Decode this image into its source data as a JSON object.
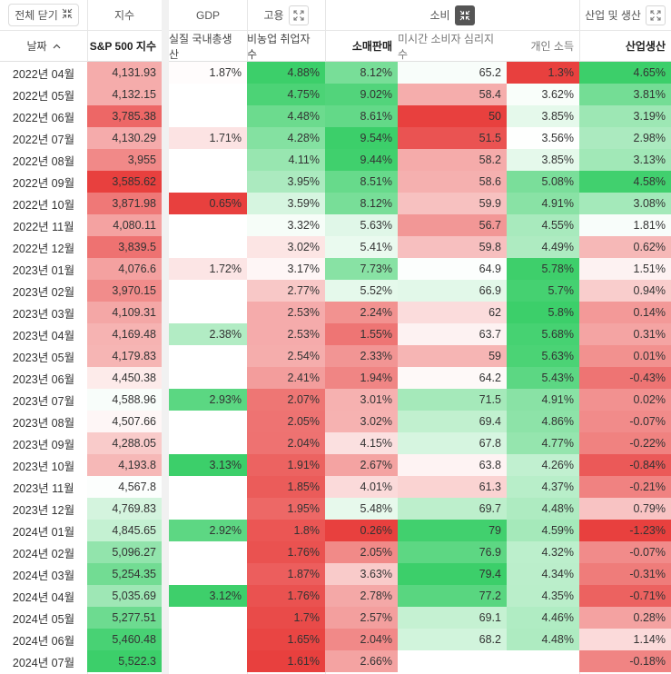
{
  "groups": {
    "collapse_all": "전체 닫기",
    "index": "지수",
    "gdp": "GDP",
    "employment": "고용",
    "consumption": "소비",
    "industry": "산업 및 생산"
  },
  "columns": {
    "date": "날짜",
    "sp500": "S&P 500 지수",
    "gdp": "실질 국내총생산",
    "nfp": "비농업 취업자 수",
    "retail": "소매판매",
    "sentiment": "미시간 소비자 심리지수",
    "income": "개인 소득",
    "industrial": "산업생산"
  },
  "icons": {
    "collapse": "collapse-arrows-icon",
    "expand": "expand-arrows-icon",
    "sort": "sort-ascending-icon"
  },
  "colors": {
    "green_strong": "#3ccf6a",
    "red_strong": "#e8403e",
    "neutral": "#ffffff"
  },
  "rows": [
    {
      "date": "2022년 04월",
      "sp500": "4,131.93",
      "gdp": "1.87%",
      "nfp": "4.88%",
      "retail": "8.12%",
      "sentiment": "65.2",
      "income": "1.3%",
      "industrial": "4.65%"
    },
    {
      "date": "2022년 05월",
      "sp500": "4,132.15",
      "gdp": "",
      "nfp": "4.75%",
      "retail": "9.02%",
      "sentiment": "58.4",
      "income": "3.62%",
      "industrial": "3.81%"
    },
    {
      "date": "2022년 06월",
      "sp500": "3,785.38",
      "gdp": "",
      "nfp": "4.48%",
      "retail": "8.61%",
      "sentiment": "50",
      "income": "3.85%",
      "industrial": "3.19%"
    },
    {
      "date": "2022년 07월",
      "sp500": "4,130.29",
      "gdp": "1.71%",
      "nfp": "4.28%",
      "retail": "9.54%",
      "sentiment": "51.5",
      "income": "3.56%",
      "industrial": "2.98%"
    },
    {
      "date": "2022년 08월",
      "sp500": "3,955",
      "gdp": "",
      "nfp": "4.11%",
      "retail": "9.44%",
      "sentiment": "58.2",
      "income": "3.85%",
      "industrial": "3.13%"
    },
    {
      "date": "2022년 09월",
      "sp500": "3,585.62",
      "gdp": "",
      "nfp": "3.95%",
      "retail": "8.51%",
      "sentiment": "58.6",
      "income": "5.08%",
      "industrial": "4.58%"
    },
    {
      "date": "2022년 10월",
      "sp500": "3,871.98",
      "gdp": "0.65%",
      "nfp": "3.59%",
      "retail": "8.12%",
      "sentiment": "59.9",
      "income": "4.91%",
      "industrial": "3.08%"
    },
    {
      "date": "2022년 11월",
      "sp500": "4,080.11",
      "gdp": "",
      "nfp": "3.32%",
      "retail": "5.63%",
      "sentiment": "56.7",
      "income": "4.55%",
      "industrial": "1.81%"
    },
    {
      "date": "2022년 12월",
      "sp500": "3,839.5",
      "gdp": "",
      "nfp": "3.02%",
      "retail": "5.41%",
      "sentiment": "59.8",
      "income": "4.49%",
      "industrial": "0.62%"
    },
    {
      "date": "2023년 01월",
      "sp500": "4,076.6",
      "gdp": "1.72%",
      "nfp": "3.17%",
      "retail": "7.73%",
      "sentiment": "64.9",
      "income": "5.78%",
      "industrial": "1.51%"
    },
    {
      "date": "2023년 02월",
      "sp500": "3,970.15",
      "gdp": "",
      "nfp": "2.77%",
      "retail": "5.52%",
      "sentiment": "66.9",
      "income": "5.7%",
      "industrial": "0.94%"
    },
    {
      "date": "2023년 03월",
      "sp500": "4,109.31",
      "gdp": "",
      "nfp": "2.53%",
      "retail": "2.24%",
      "sentiment": "62",
      "income": "5.8%",
      "industrial": "0.14%"
    },
    {
      "date": "2023년 04월",
      "sp500": "4,169.48",
      "gdp": "2.38%",
      "nfp": "2.53%",
      "retail": "1.55%",
      "sentiment": "63.7",
      "income": "5.68%",
      "industrial": "0.31%"
    },
    {
      "date": "2023년 05월",
      "sp500": "4,179.83",
      "gdp": "",
      "nfp": "2.54%",
      "retail": "2.33%",
      "sentiment": "59",
      "income": "5.63%",
      "industrial": "0.01%"
    },
    {
      "date": "2023년 06월",
      "sp500": "4,450.38",
      "gdp": "",
      "nfp": "2.41%",
      "retail": "1.94%",
      "sentiment": "64.2",
      "income": "5.43%",
      "industrial": "-0.43%"
    },
    {
      "date": "2023년 07월",
      "sp500": "4,588.96",
      "gdp": "2.93%",
      "nfp": "2.07%",
      "retail": "3.01%",
      "sentiment": "71.5",
      "income": "4.91%",
      "industrial": "0.02%"
    },
    {
      "date": "2023년 08월",
      "sp500": "4,507.66",
      "gdp": "",
      "nfp": "2.05%",
      "retail": "3.02%",
      "sentiment": "69.4",
      "income": "4.86%",
      "industrial": "-0.07%"
    },
    {
      "date": "2023년 09월",
      "sp500": "4,288.05",
      "gdp": "",
      "nfp": "2.04%",
      "retail": "4.15%",
      "sentiment": "67.8",
      "income": "4.77%",
      "industrial": "-0.22%"
    },
    {
      "date": "2023년 10월",
      "sp500": "4,193.8",
      "gdp": "3.13%",
      "nfp": "1.91%",
      "retail": "2.67%",
      "sentiment": "63.8",
      "income": "4.26%",
      "industrial": "-0.84%"
    },
    {
      "date": "2023년 11월",
      "sp500": "4,567.8",
      "gdp": "",
      "nfp": "1.85%",
      "retail": "4.01%",
      "sentiment": "61.3",
      "income": "4.37%",
      "industrial": "-0.21%"
    },
    {
      "date": "2023년 12월",
      "sp500": "4,769.83",
      "gdp": "",
      "nfp": "1.95%",
      "retail": "5.48%",
      "sentiment": "69.7",
      "income": "4.48%",
      "industrial": "0.79%"
    },
    {
      "date": "2024년 01월",
      "sp500": "4,845.65",
      "gdp": "2.92%",
      "nfp": "1.8%",
      "retail": "0.26%",
      "sentiment": "79",
      "income": "4.59%",
      "industrial": "-1.23%"
    },
    {
      "date": "2024년 02월",
      "sp500": "5,096.27",
      "gdp": "",
      "nfp": "1.76%",
      "retail": "2.05%",
      "sentiment": "76.9",
      "income": "4.32%",
      "industrial": "-0.07%"
    },
    {
      "date": "2024년 03월",
      "sp500": "5,254.35",
      "gdp": "",
      "nfp": "1.87%",
      "retail": "3.63%",
      "sentiment": "79.4",
      "income": "4.34%",
      "industrial": "-0.31%"
    },
    {
      "date": "2024년 04월",
      "sp500": "5,035.69",
      "gdp": "3.12%",
      "nfp": "1.76%",
      "retail": "2.78%",
      "sentiment": "77.2",
      "income": "4.35%",
      "industrial": "-0.71%"
    },
    {
      "date": "2024년 05월",
      "sp500": "5,277.51",
      "gdp": "",
      "nfp": "1.7%",
      "retail": "2.57%",
      "sentiment": "69.1",
      "income": "4.46%",
      "industrial": "0.28%"
    },
    {
      "date": "2024년 06월",
      "sp500": "5,460.48",
      "gdp": "",
      "nfp": "1.65%",
      "retail": "2.04%",
      "sentiment": "68.2",
      "income": "4.48%",
      "industrial": "1.14%"
    },
    {
      "date": "2024년 07월",
      "sp500": "5,522.3",
      "gdp": "",
      "nfp": "1.61%",
      "retail": "2.66%",
      "sentiment": "",
      "income": "",
      "industrial": "-0.18%"
    }
  ]
}
